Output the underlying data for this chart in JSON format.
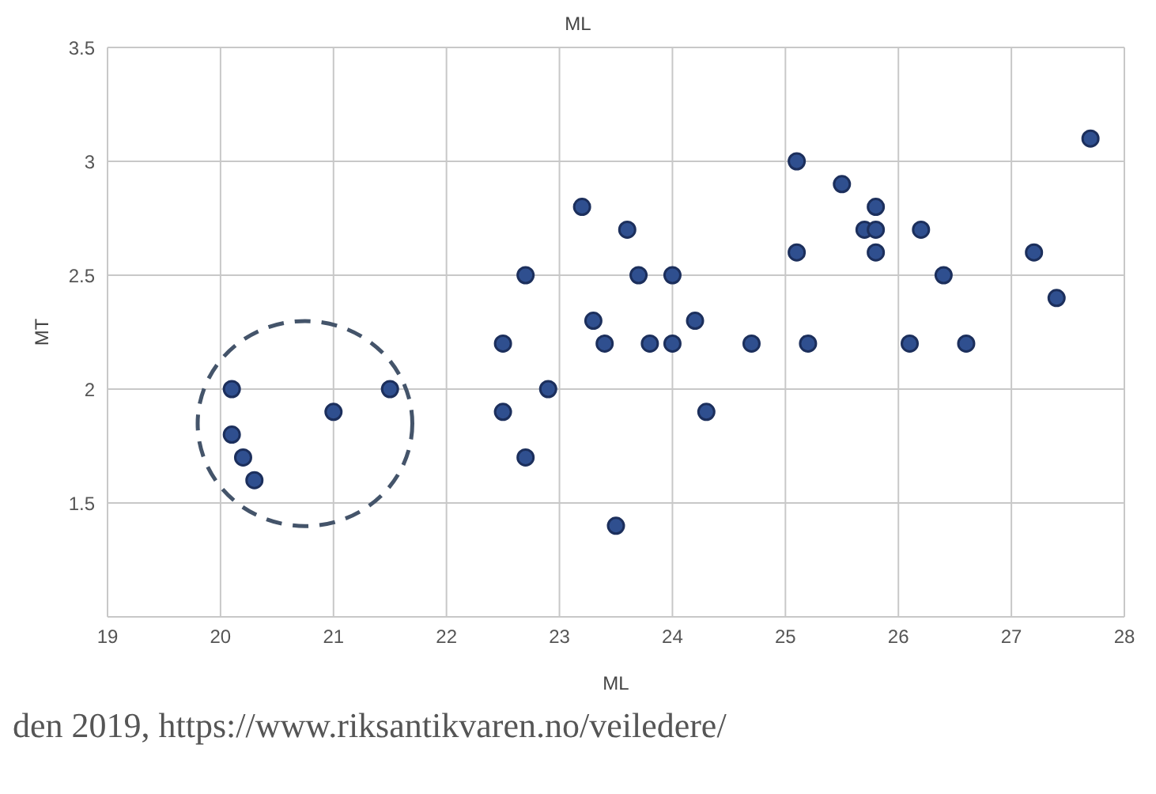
{
  "chart_data": {
    "type": "scatter",
    "title": "ML",
    "xlabel": "ML",
    "ylabel": "MT",
    "annotations": [
      "den 2019, https://www.riksantikvaren.no/veiledere/"
    ],
    "x": [
      20.1,
      20.1,
      20.2,
      20.3,
      21.0,
      21.5,
      22.5,
      22.5,
      22.7,
      22.7,
      22.9,
      23.2,
      23.3,
      23.4,
      23.5,
      23.6,
      23.7,
      23.8,
      24.0,
      24.0,
      24.2,
      24.3,
      24.7,
      25.1,
      25.1,
      25.2,
      25.5,
      25.7,
      25.8,
      25.8,
      25.8,
      26.1,
      26.2,
      26.4,
      26.6,
      27.2,
      27.4,
      27.7
    ],
    "values": [
      2.0,
      1.8,
      1.7,
      1.6,
      1.9,
      2.0,
      2.2,
      1.9,
      2.5,
      1.7,
      2.0,
      2.8,
      2.3,
      2.2,
      1.4,
      2.7,
      2.5,
      2.2,
      2.5,
      2.2,
      2.3,
      1.9,
      2.2,
      3.0,
      2.6,
      2.2,
      2.9,
      2.7,
      2.7,
      2.8,
      2.6,
      2.2,
      2.7,
      2.5,
      2.2,
      2.6,
      2.4,
      3.1
    ],
    "color": "#2f4f8f",
    "marker": "circle",
    "grid": true,
    "xlim": [
      19,
      28
    ],
    "xticks": [
      19,
      20,
      21,
      22,
      23,
      24,
      25,
      26,
      27,
      28
    ],
    "ylim": [
      1,
      3.5
    ],
    "yticks": [
      1.5,
      2,
      2.5,
      3,
      3.5
    ]
  }
}
